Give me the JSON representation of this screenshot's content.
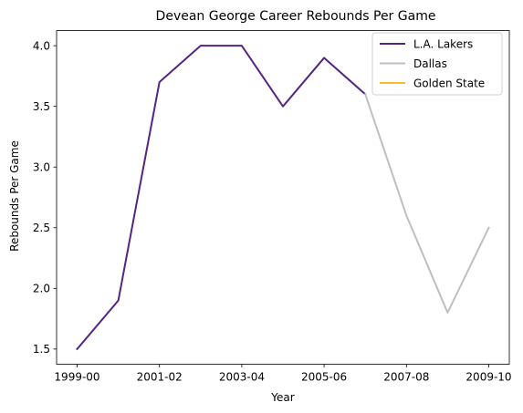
{
  "chart_data": {
    "type": "line",
    "title": "Devean George Career Rebounds Per Game",
    "xlabel": "Year",
    "ylabel": "Rebounds Per Game",
    "x_categories": [
      "1999-00",
      "2000-01",
      "2001-02",
      "2002-03",
      "2003-04",
      "2004-05",
      "2005-06",
      "2006-07",
      "2007-08",
      "2008-09",
      "2009-10"
    ],
    "x_tick_labels": [
      "1999-00",
      "2001-02",
      "2003-04",
      "2005-06",
      "2007-08",
      "2009-10"
    ],
    "y_ticks": [
      "1.5",
      "2.0",
      "2.5",
      "3.0",
      "3.5",
      "4.0"
    ],
    "ylim": [
      1.375,
      4.125
    ],
    "grid": false,
    "legend_position": "top-right",
    "series": [
      {
        "name": "L.A. Lakers",
        "color": "#552583",
        "x": [
          "1999-00",
          "2000-01",
          "2001-02",
          "2002-03",
          "2003-04",
          "2004-05",
          "2005-06",
          "2006-07"
        ],
        "values": [
          1.5,
          1.9,
          3.7,
          4.0,
          4.0,
          3.5,
          3.9,
          3.6
        ]
      },
      {
        "name": "Dallas",
        "color": "#bfbfbf",
        "x": [
          "2006-07",
          "2007-08",
          "2008-09",
          "2009-10"
        ],
        "values": [
          3.6,
          2.6,
          1.8,
          2.5
        ]
      },
      {
        "name": "Golden State",
        "color": "#fdb927",
        "x": [],
        "values": []
      }
    ]
  }
}
